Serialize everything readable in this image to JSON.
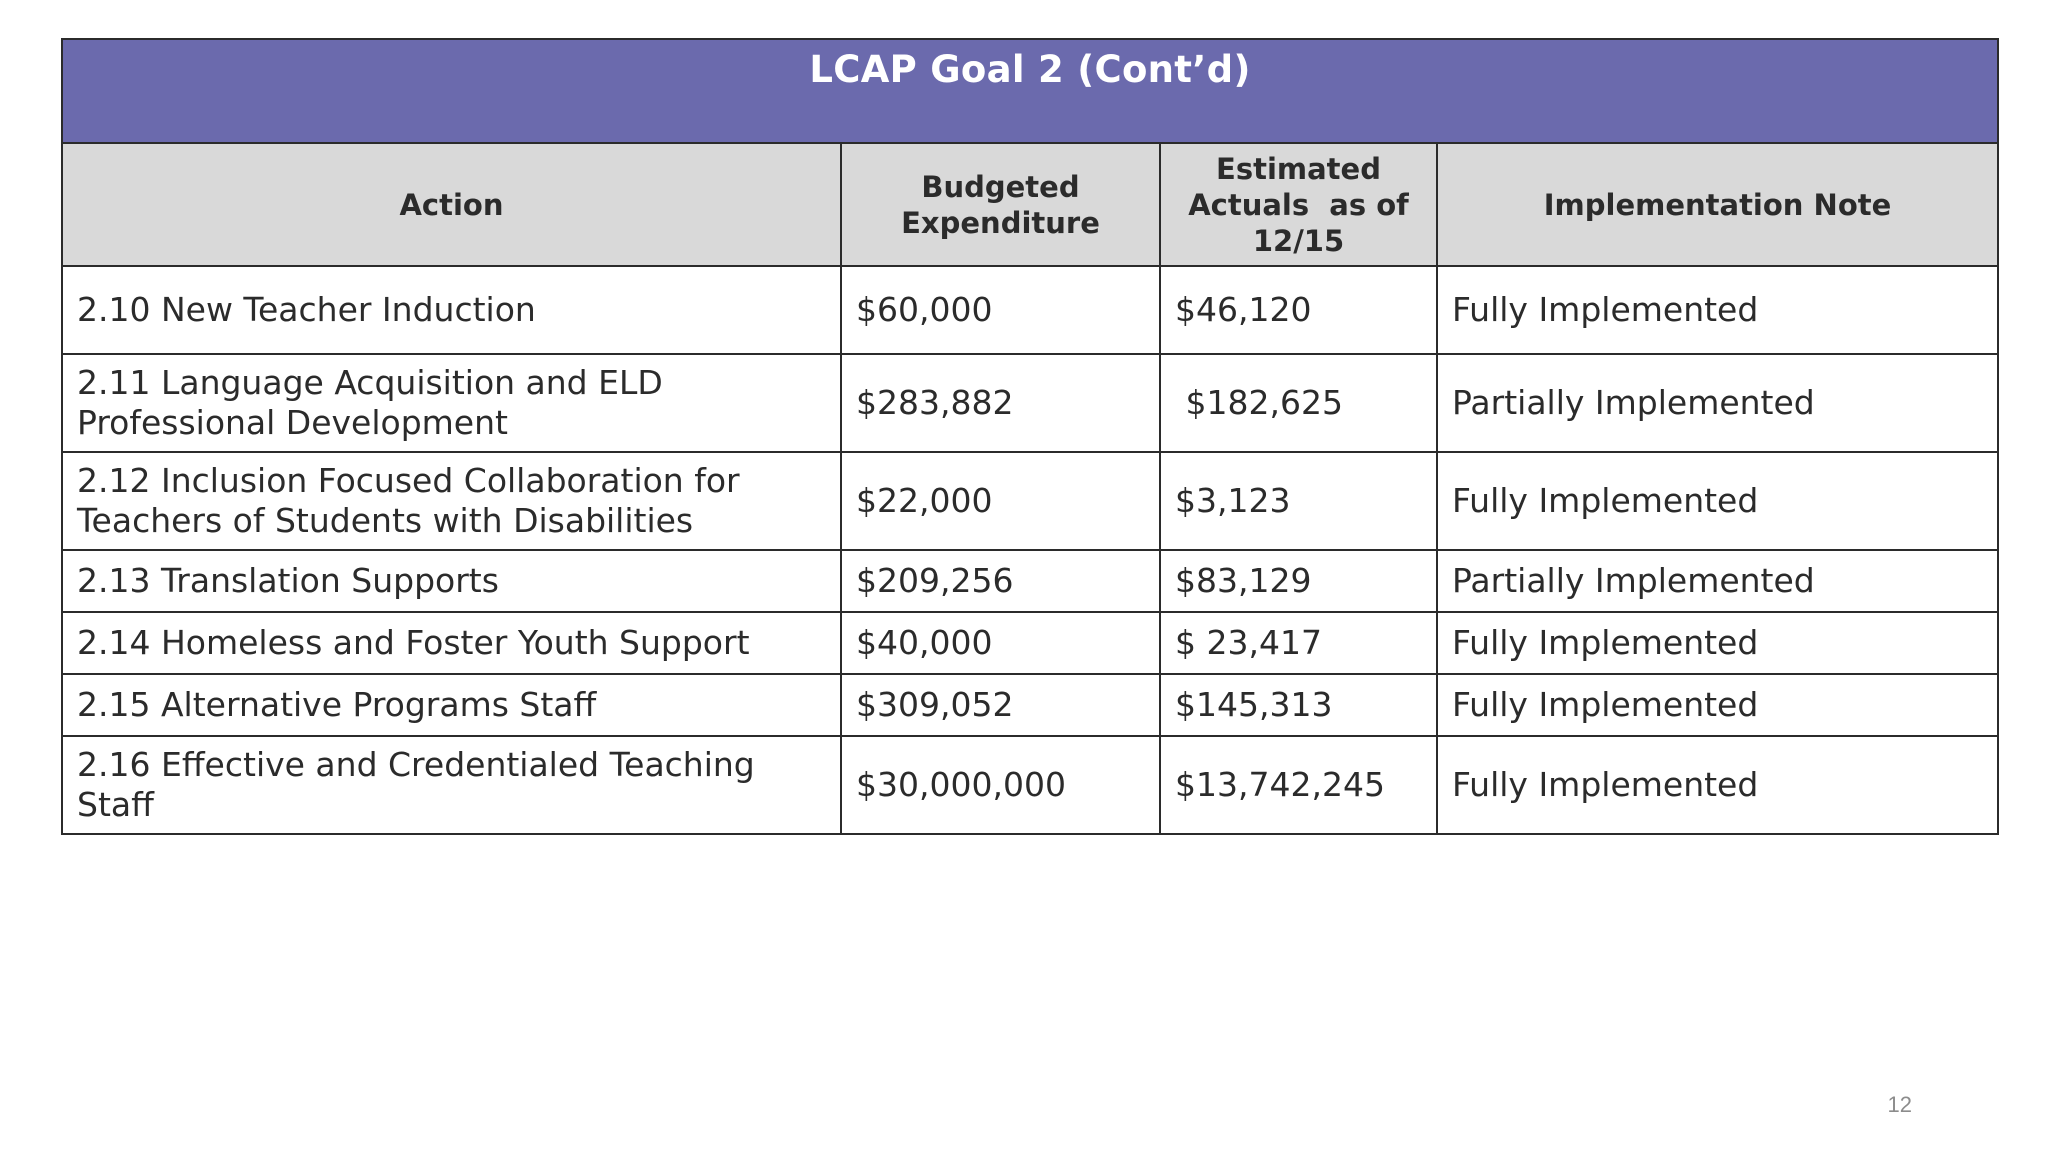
{
  "table": {
    "title": "LCAP Goal 2 (Cont’d)",
    "headers": {
      "action": "Action",
      "budgeted": [
        "Budgeted",
        "Expenditure"
      ],
      "estimated": [
        "Estimated",
        "Actuals  as of",
        "12/15"
      ],
      "note": "Implementation Note"
    },
    "rows": [
      {
        "action": [
          "2.10 New Teacher Induction"
        ],
        "budgeted": "$60,000",
        "estimated": "$46,120",
        "note": "Fully Implemented"
      },
      {
        "action": [
          "2.11 Language Acquisition and ELD",
          "Professional Development"
        ],
        "budgeted": "$283,882",
        "estimated": " $182,625",
        "note": "Partially Implemented"
      },
      {
        "action": [
          "2.12 Inclusion Focused Collaboration for",
          "Teachers of Students with Disabilities"
        ],
        "budgeted": "$22,000",
        "estimated": "$3,123",
        "note": "Fully Implemented"
      },
      {
        "action": [
          "2.13 Translation Supports"
        ],
        "budgeted": "$209,256",
        "estimated": "$83,129",
        "note": "Partially Implemented"
      },
      {
        "action": [
          "2.14 Homeless and Foster Youth Support"
        ],
        "budgeted": "$40,000",
        "estimated": "$ 23,417",
        "note": "Fully Implemented"
      },
      {
        "action": [
          "2.15 Alternative Programs Staff"
        ],
        "budgeted": "$309,052",
        "estimated": "$145,313",
        "note": "Fully Implemented"
      },
      {
        "action": [
          "2.16 Effective and Credentialed Teaching",
          "Staff"
        ],
        "budgeted": "$30,000,000",
        "estimated": "$13,742,245",
        "note": "Fully Implemented"
      }
    ]
  },
  "page_number": "12",
  "colors": {
    "title_bg": "#6b6aad",
    "header_bg": "#d9d9d9",
    "border": "#2b2b2b"
  }
}
